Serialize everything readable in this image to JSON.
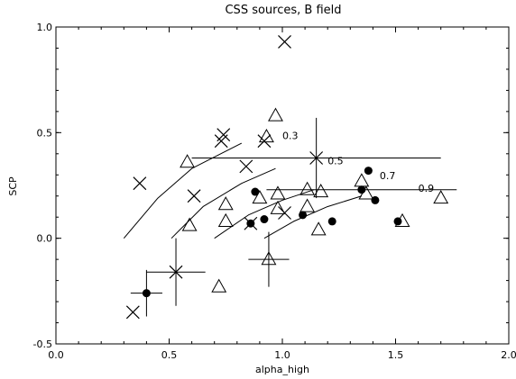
{
  "chart_data": {
    "type": "scatter",
    "title": "CSS sources, B field",
    "xlabel": "alpha_high",
    "ylabel": "SCP",
    "xlim": [
      0.0,
      2.0
    ],
    "ylim": [
      -0.5,
      1.0
    ],
    "xticks": [
      0.0,
      0.5,
      1.0,
      1.5,
      2.0
    ],
    "xtick_labels": [
      "0.0",
      "0.5",
      "1.0",
      "1.5",
      "2.0"
    ],
    "yticks": [
      -0.5,
      0.0,
      0.5,
      1.0
    ],
    "ytick_labels": [
      "-0.5",
      "0.0",
      "0.5",
      "1.0"
    ],
    "grid": false,
    "series": [
      {
        "marker": "cross",
        "points": [
          {
            "x": 0.34,
            "y": -0.35
          },
          {
            "x": 0.37,
            "y": 0.26
          },
          {
            "x": 0.53,
            "y": -0.16,
            "xerr": 0.13,
            "yerr": 0.16
          },
          {
            "x": 0.61,
            "y": 0.2
          },
          {
            "x": 0.73,
            "y": 0.46
          },
          {
            "x": 0.74,
            "y": 0.49
          },
          {
            "x": 0.84,
            "y": 0.34
          },
          {
            "x": 0.86,
            "y": 0.07
          },
          {
            "x": 0.92,
            "y": 0.46
          },
          {
            "x": 1.01,
            "y": 0.93
          },
          {
            "x": 1.01,
            "y": 0.12
          },
          {
            "x": 1.15,
            "y": 0.38,
            "xerr": 0.55,
            "yerr": 0.19
          }
        ]
      },
      {
        "marker": "triangle",
        "points": [
          {
            "x": 0.58,
            "y": 0.36
          },
          {
            "x": 0.59,
            "y": 0.06
          },
          {
            "x": 0.72,
            "y": -0.23
          },
          {
            "x": 0.75,
            "y": 0.16
          },
          {
            "x": 0.75,
            "y": 0.08
          },
          {
            "x": 0.9,
            "y": 0.19
          },
          {
            "x": 0.93,
            "y": 0.48
          },
          {
            "x": 0.94,
            "y": -0.1,
            "xerr": 0.09,
            "yerr": 0.13
          },
          {
            "x": 0.97,
            "y": 0.58
          },
          {
            "x": 0.98,
            "y": 0.21
          },
          {
            "x": 0.98,
            "y": 0.14
          },
          {
            "x": 1.11,
            "y": 0.23
          },
          {
            "x": 1.11,
            "y": 0.15
          },
          {
            "x": 1.16,
            "y": 0.04
          },
          {
            "x": 1.17,
            "y": 0.22
          },
          {
            "x": 1.35,
            "y": 0.27
          },
          {
            "x": 1.37,
            "y": 0.21
          },
          {
            "x": 1.53,
            "y": 0.08
          },
          {
            "x": 1.7,
            "y": 0.19
          }
        ]
      },
      {
        "marker": "filled-circle",
        "points": [
          {
            "x": 0.4,
            "y": -0.26,
            "xerr": 0.07,
            "yerr": 0.11
          },
          {
            "x": 0.86,
            "y": 0.07
          },
          {
            "x": 0.88,
            "y": 0.22
          },
          {
            "x": 0.92,
            "y": 0.09
          },
          {
            "x": 1.09,
            "y": 0.11
          },
          {
            "x": 1.22,
            "y": 0.08
          },
          {
            "x": 1.35,
            "y": 0.23,
            "xerr": 0.42
          },
          {
            "x": 1.38,
            "y": 0.32
          },
          {
            "x": 1.41,
            "y": 0.18
          },
          {
            "x": 1.51,
            "y": 0.08
          }
        ]
      }
    ],
    "curves": [
      {
        "points": [
          [
            0.3,
            0.0
          ],
          [
            0.45,
            0.19
          ],
          [
            0.6,
            0.33
          ],
          [
            0.82,
            0.45
          ]
        ]
      },
      {
        "points": [
          [
            0.51,
            0.0
          ],
          [
            0.65,
            0.15
          ],
          [
            0.82,
            0.26
          ],
          [
            0.97,
            0.33
          ]
        ]
      },
      {
        "points": [
          [
            0.7,
            0.0
          ],
          [
            0.85,
            0.11
          ],
          [
            1.0,
            0.18
          ],
          [
            1.14,
            0.23
          ]
        ]
      },
      {
        "points": [
          [
            0.92,
            0.0
          ],
          [
            1.05,
            0.08
          ],
          [
            1.2,
            0.15
          ],
          [
            1.35,
            0.2
          ]
        ]
      }
    ],
    "annotations": [
      {
        "text": "0.3",
        "x": 1.0,
        "y": 0.47
      },
      {
        "text": "0.5",
        "x": 1.2,
        "y": 0.35
      },
      {
        "text": "0.7",
        "x": 1.43,
        "y": 0.28
      },
      {
        "text": "0.9",
        "x": 1.6,
        "y": 0.22
      }
    ]
  }
}
